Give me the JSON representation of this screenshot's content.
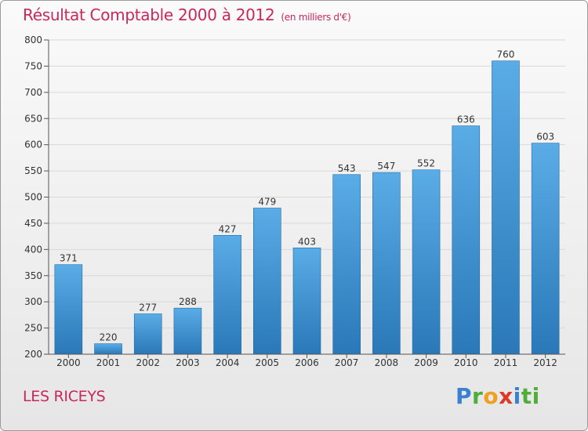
{
  "header": {
    "title": "Résultat Comptable 2000 à 2012",
    "subtitle": "(en milliers d'€)"
  },
  "footer": {
    "town": "LES RICEYS",
    "logo": "Proxiti"
  },
  "colors": {
    "title": "#c8285a",
    "bar_light": "#5aace6",
    "bar_dark": "#2a78b8"
  },
  "chart_data": {
    "type": "bar",
    "title": "Résultat Comptable 2000 à 2012",
    "subtitle": "(en milliers d'€)",
    "xlabel": "",
    "ylabel": "",
    "categories": [
      "2000",
      "2001",
      "2002",
      "2003",
      "2004",
      "2005",
      "2006",
      "2007",
      "2008",
      "2009",
      "2010",
      "2011",
      "2012"
    ],
    "values": [
      371,
      220,
      277,
      288,
      427,
      479,
      403,
      543,
      547,
      552,
      636,
      760,
      603
    ],
    "ylim": [
      200,
      800
    ],
    "yticks": [
      200,
      250,
      300,
      350,
      400,
      450,
      500,
      550,
      600,
      650,
      700,
      750,
      800
    ],
    "grid": true
  }
}
